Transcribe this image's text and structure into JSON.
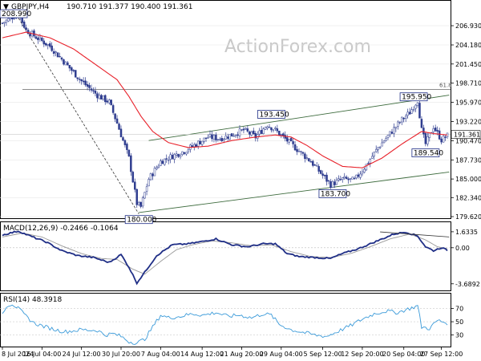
{
  "header": {
    "symbol": "GBPJPY,H4",
    "ohlc": "190.710 191.377 190.400 191.361",
    "macd_label": "MACD(12,26,9) -0.2466 -0.1064",
    "rsi_label": "RSI(14) 48.3918"
  },
  "watermark": "ActionForex.com",
  "colors": {
    "candle": "#2f3d8f",
    "ema": "#e8212a",
    "trend": "#3d6b3d",
    "fib": "#666666",
    "macd": "#1f2e86",
    "signal": "#999999",
    "rsi": "#3a9ad9",
    "grid": "#e8e8e8"
  },
  "chart_data": [
    {
      "type": "candlestick",
      "name": "price",
      "ylim": [
        179.62,
        209.0
      ],
      "y_ticks": [
        "206.930",
        "204.180",
        "201.450",
        "198.710",
        "195.970",
        "193.220",
        "190.470",
        "187.730",
        "185.000",
        "182.340",
        "179.620"
      ],
      "last_price_label": "191.361",
      "x_ticks": [
        "8 Jul 2024",
        "16 Jul 04:00",
        "24 Jul 12:00",
        "30 Jul 20:00",
        "7 Aug 04:00",
        "14 Aug 12:00",
        "21 Aug 20:00",
        "29 Aug 04:00",
        "5 Sep 12:00",
        "12 Sep 20:00",
        "20 Sep 04:00",
        "27 Sep 12:00"
      ],
      "close_anchors": [
        [
          0,
          207.3
        ],
        [
          4,
          208.0
        ],
        [
          8,
          208.7
        ],
        [
          12,
          206.3
        ],
        [
          17,
          205.3
        ],
        [
          24,
          204.0
        ],
        [
          32,
          201.5
        ],
        [
          40,
          199.0
        ],
        [
          48,
          197.0
        ],
        [
          54,
          196.0
        ],
        [
          58,
          193.0
        ],
        [
          64,
          188.0
        ],
        [
          68,
          181.5
        ],
        [
          70,
          181.0
        ],
        [
          74,
          185.0
        ],
        [
          80,
          187.5
        ],
        [
          86,
          188.3
        ],
        [
          92,
          189.0
        ],
        [
          98,
          190.0
        ],
        [
          104,
          191.0
        ],
        [
          110,
          190.8
        ],
        [
          116,
          191.3
        ],
        [
          122,
          192.0
        ],
        [
          128,
          191.0
        ],
        [
          134,
          192.8
        ],
        [
          138,
          192.0
        ],
        [
          144,
          190.5
        ],
        [
          150,
          189.0
        ],
        [
          156,
          187.5
        ],
        [
          162,
          185.5
        ],
        [
          166,
          184.2
        ],
        [
          172,
          185.0
        ],
        [
          178,
          184.8
        ],
        [
          184,
          187.0
        ],
        [
          190,
          189.5
        ],
        [
          196,
          191.5
        ],
        [
          202,
          193.5
        ],
        [
          206,
          194.5
        ],
        [
          210,
          196.3
        ],
        [
          212,
          192.0
        ],
        [
          214,
          190.0
        ],
        [
          218,
          192.5
        ],
        [
          222,
          190.6
        ],
        [
          225,
          191.2
        ]
      ],
      "annotations": [
        {
          "label": "208.990",
          "index": 5,
          "value": 208.99,
          "pos": "left"
        },
        {
          "label": "193.450",
          "index": 136,
          "value": 193.45,
          "pos": "above"
        },
        {
          "label": "195.950",
          "index": 208,
          "value": 195.95,
          "pos": "above"
        },
        {
          "label": "189.540",
          "index": 214,
          "value": 189.54,
          "pos": "below"
        },
        {
          "label": "183.700",
          "index": 167,
          "value": 183.7,
          "pos": "below"
        },
        {
          "label": "180.000",
          "index": 69,
          "value": 180.0,
          "pos": "below"
        }
      ],
      "fib_label": "61.8",
      "fib_value": 197.8,
      "trend_upper": [
        [
          74,
          190.5
        ],
        [
          226,
          197.0
        ]
      ],
      "trend_lower": [
        [
          69,
          180.2
        ],
        [
          226,
          186.0
        ]
      ],
      "dashed_line": [
        [
          6,
          209.0
        ],
        [
          69,
          180.0
        ]
      ],
      "ema_anchors": [
        [
          0,
          205.2
        ],
        [
          12,
          206.0
        ],
        [
          24,
          205.2
        ],
        [
          36,
          203.6
        ],
        [
          48,
          201.2
        ],
        [
          58,
          199.2
        ],
        [
          64,
          196.8
        ],
        [
          70,
          194.0
        ],
        [
          76,
          191.8
        ],
        [
          84,
          190.2
        ],
        [
          94,
          189.5
        ],
        [
          104,
          189.7
        ],
        [
          116,
          190.5
        ],
        [
          128,
          191.0
        ],
        [
          138,
          191.3
        ],
        [
          146,
          191.0
        ],
        [
          154,
          189.8
        ],
        [
          162,
          188.3
        ],
        [
          172,
          186.8
        ],
        [
          182,
          186.6
        ],
        [
          192,
          188.0
        ],
        [
          202,
          190.0
        ],
        [
          212,
          191.8
        ],
        [
          218,
          191.5
        ],
        [
          225,
          191.3
        ]
      ]
    },
    {
      "type": "line",
      "name": "MACD",
      "ylim": [
        -4.2,
        2.2
      ],
      "y_ticks": [
        "1.6335",
        "0.00",
        "-3.6892"
      ],
      "macd_anchors": [
        [
          0,
          1.3
        ],
        [
          8,
          1.7
        ],
        [
          14,
          1.2
        ],
        [
          22,
          0.6
        ],
        [
          30,
          -0.3
        ],
        [
          38,
          -0.8
        ],
        [
          46,
          -1.0
        ],
        [
          54,
          -1.5
        ],
        [
          60,
          -0.7
        ],
        [
          64,
          -2.0
        ],
        [
          68,
          -3.6
        ],
        [
          72,
          -2.5
        ],
        [
          78,
          -0.8
        ],
        [
          86,
          0.3
        ],
        [
          94,
          0.4
        ],
        [
          100,
          0.6
        ],
        [
          108,
          0.9
        ],
        [
          116,
          0.3
        ],
        [
          124,
          0.1
        ],
        [
          132,
          0.4
        ],
        [
          138,
          0.4
        ],
        [
          144,
          -0.6
        ],
        [
          150,
          -0.9
        ],
        [
          158,
          -1.0
        ],
        [
          166,
          -1.1
        ],
        [
          172,
          -0.6
        ],
        [
          180,
          -0.1
        ],
        [
          186,
          0.4
        ],
        [
          192,
          0.9
        ],
        [
          198,
          1.4
        ],
        [
          204,
          1.6
        ],
        [
          210,
          1.2
        ],
        [
          214,
          0.1
        ],
        [
          218,
          -0.3
        ],
        [
          222,
          0.0
        ],
        [
          225,
          -0.25
        ]
      ],
      "signal_anchors": [
        [
          0,
          1.1
        ],
        [
          10,
          1.5
        ],
        [
          20,
          1.1
        ],
        [
          30,
          0.2
        ],
        [
          40,
          -0.6
        ],
        [
          50,
          -1.1
        ],
        [
          58,
          -1.2
        ],
        [
          66,
          -2.2
        ],
        [
          72,
          -2.7
        ],
        [
          80,
          -1.4
        ],
        [
          88,
          -0.2
        ],
        [
          96,
          0.3
        ],
        [
          106,
          0.7
        ],
        [
          116,
          0.5
        ],
        [
          126,
          0.2
        ],
        [
          136,
          0.3
        ],
        [
          146,
          -0.4
        ],
        [
          156,
          -0.9
        ],
        [
          166,
          -1.0
        ],
        [
          176,
          -0.6
        ],
        [
          186,
          0.1
        ],
        [
          196,
          0.9
        ],
        [
          206,
          1.4
        ],
        [
          214,
          0.8
        ],
        [
          220,
          0.1
        ],
        [
          225,
          -0.1
        ]
      ],
      "divergence_line": [
        [
          191,
          1.62
        ],
        [
          226,
          1.1
        ]
      ]
    },
    {
      "type": "line",
      "name": "RSI",
      "ylim": [
        15,
        90
      ],
      "y_ticks": [
        "70",
        "50",
        "30"
      ],
      "rsi_anchors": [
        [
          0,
          62
        ],
        [
          2,
          74
        ],
        [
          5,
          77
        ],
        [
          8,
          70
        ],
        [
          12,
          58
        ],
        [
          16,
          48
        ],
        [
          22,
          42
        ],
        [
          28,
          37
        ],
        [
          32,
          35
        ],
        [
          40,
          38
        ],
        [
          48,
          37
        ],
        [
          52,
          30
        ],
        [
          56,
          32
        ],
        [
          60,
          28
        ],
        [
          64,
          20
        ],
        [
          68,
          18
        ],
        [
          72,
          24
        ],
        [
          76,
          42
        ],
        [
          80,
          60
        ],
        [
          84,
          56
        ],
        [
          90,
          58
        ],
        [
          96,
          62
        ],
        [
          102,
          60
        ],
        [
          108,
          64
        ],
        [
          114,
          58
        ],
        [
          120,
          60
        ],
        [
          126,
          56
        ],
        [
          132,
          62
        ],
        [
          136,
          60
        ],
        [
          140,
          46
        ],
        [
          146,
          38
        ],
        [
          152,
          34
        ],
        [
          158,
          30
        ],
        [
          164,
          28
        ],
        [
          170,
          36
        ],
        [
          176,
          44
        ],
        [
          182,
          54
        ],
        [
          188,
          62
        ],
        [
          194,
          66
        ],
        [
          200,
          64
        ],
        [
          206,
          70
        ],
        [
          210,
          74
        ],
        [
          212,
          42
        ],
        [
          216,
          40
        ],
        [
          220,
          52
        ],
        [
          225,
          48
        ]
      ]
    }
  ]
}
